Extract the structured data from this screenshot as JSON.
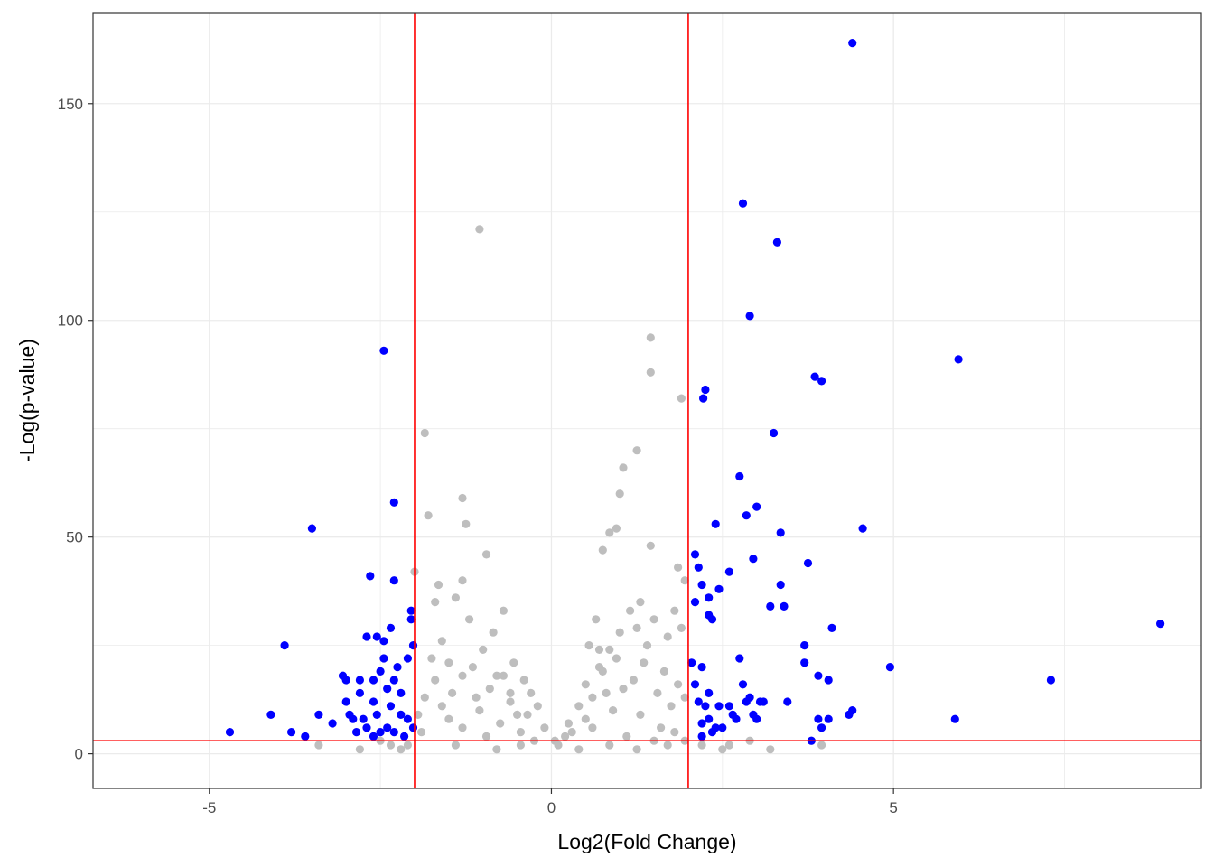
{
  "chart_data": {
    "type": "scatter",
    "title": "",
    "xlabel": "Log2(Fold Change)",
    "ylabel": "-Log(p-value)",
    "xlim": [
      -6.7,
      9.5
    ],
    "ylim": [
      -8,
      171
    ],
    "x_ticks": [
      -5,
      0,
      5
    ],
    "x_tick_labels": [
      "-5",
      "0",
      "5"
    ],
    "y_ticks": [
      0,
      50,
      100,
      150
    ],
    "y_tick_labels": [
      "0",
      "50",
      "100",
      "150"
    ],
    "grid": true,
    "legend": "none",
    "thresholds": {
      "log2fc_low": -2,
      "log2fc_high": 2,
      "neglog_p": 3
    },
    "colors": {
      "significant": "#0000ff",
      "not_significant": "#bebebe",
      "threshold_line": "#ff0000",
      "grid": "#ebebeb",
      "panel_border": "#333333"
    },
    "series": [
      {
        "color": "#0000ff",
        "points": [
          [
            -4.7,
            5
          ],
          [
            -4.1,
            9
          ],
          [
            -3.9,
            25
          ],
          [
            -3.8,
            5
          ],
          [
            -3.6,
            4
          ],
          [
            -3.5,
            52
          ],
          [
            -3.4,
            9
          ],
          [
            -3.2,
            7
          ],
          [
            -3.05,
            18
          ],
          [
            -3.0,
            17
          ],
          [
            -3.0,
            12
          ],
          [
            -2.95,
            9
          ],
          [
            -2.9,
            8
          ],
          [
            -2.85,
            5
          ],
          [
            -2.8,
            17
          ],
          [
            -2.8,
            14
          ],
          [
            -2.75,
            8
          ],
          [
            -2.7,
            27
          ],
          [
            -2.7,
            6
          ],
          [
            -2.65,
            41
          ],
          [
            -2.6,
            17
          ],
          [
            -2.6,
            12
          ],
          [
            -2.6,
            4
          ],
          [
            -2.55,
            27
          ],
          [
            -2.55,
            9
          ],
          [
            -2.5,
            19
          ],
          [
            -2.5,
            5
          ],
          [
            -2.45,
            93
          ],
          [
            -2.45,
            26
          ],
          [
            -2.45,
            22
          ],
          [
            -2.4,
            15
          ],
          [
            -2.4,
            6
          ],
          [
            -2.35,
            29
          ],
          [
            -2.35,
            11
          ],
          [
            -2.3,
            58
          ],
          [
            -2.3,
            40
          ],
          [
            -2.3,
            17
          ],
          [
            -2.3,
            5
          ],
          [
            -2.25,
            20
          ],
          [
            -2.2,
            14
          ],
          [
            -2.2,
            9
          ],
          [
            -2.15,
            4
          ],
          [
            -2.1,
            22
          ],
          [
            -2.1,
            8
          ],
          [
            -2.05,
            33
          ],
          [
            -2.05,
            31
          ],
          [
            -2.02,
            25
          ],
          [
            -2.02,
            6
          ],
          [
            2.1,
            46
          ],
          [
            2.15,
            43
          ],
          [
            2.2,
            39
          ],
          [
            2.25,
            84
          ],
          [
            2.22,
            82
          ],
          [
            2.3,
            36
          ],
          [
            2.3,
            32
          ],
          [
            2.35,
            31
          ],
          [
            2.4,
            53
          ],
          [
            2.45,
            38
          ],
          [
            2.2,
            20
          ],
          [
            2.3,
            14
          ],
          [
            2.25,
            11
          ],
          [
            2.2,
            4
          ],
          [
            2.1,
            35
          ],
          [
            2.05,
            21
          ],
          [
            2.1,
            16
          ],
          [
            2.15,
            12
          ],
          [
            2.2,
            7
          ],
          [
            2.3,
            8
          ],
          [
            2.35,
            5
          ],
          [
            2.4,
            6
          ],
          [
            2.45,
            11
          ],
          [
            2.5,
            6
          ],
          [
            2.6,
            42
          ],
          [
            2.6,
            11
          ],
          [
            2.65,
            9
          ],
          [
            2.7,
            8
          ],
          [
            2.75,
            64
          ],
          [
            2.8,
            127
          ],
          [
            2.85,
            55
          ],
          [
            2.9,
            101
          ],
          [
            2.95,
            45
          ],
          [
            3.0,
            57
          ],
          [
            2.75,
            22
          ],
          [
            2.8,
            16
          ],
          [
            2.85,
            12
          ],
          [
            2.9,
            13
          ],
          [
            2.95,
            9
          ],
          [
            3.0,
            8
          ],
          [
            3.05,
            12
          ],
          [
            3.1,
            12
          ],
          [
            3.2,
            34
          ],
          [
            3.25,
            74
          ],
          [
            3.3,
            118
          ],
          [
            3.35,
            39
          ],
          [
            3.35,
            51
          ],
          [
            3.4,
            34
          ],
          [
            3.45,
            12
          ],
          [
            3.7,
            21
          ],
          [
            3.7,
            25
          ],
          [
            3.75,
            44
          ],
          [
            3.8,
            3
          ],
          [
            3.85,
            87
          ],
          [
            3.95,
            86
          ],
          [
            3.9,
            18
          ],
          [
            3.9,
            8
          ],
          [
            3.95,
            6
          ],
          [
            4.05,
            8
          ],
          [
            4.05,
            17
          ],
          [
            4.1,
            29
          ],
          [
            4.35,
            9
          ],
          [
            4.4,
            10
          ],
          [
            4.4,
            164
          ],
          [
            4.55,
            52
          ],
          [
            4.95,
            20
          ],
          [
            5.9,
            8
          ],
          [
            5.95,
            91
          ],
          [
            7.3,
            17
          ],
          [
            8.9,
            30
          ]
        ]
      },
      {
        "color": "#bebebe",
        "points": [
          [
            -1.05,
            121
          ],
          [
            1.45,
            96
          ],
          [
            1.45,
            88
          ],
          [
            -1.85,
            74
          ],
          [
            -2.0,
            42
          ],
          [
            -1.8,
            55
          ],
          [
            -1.3,
            59
          ],
          [
            -1.25,
            53
          ],
          [
            -1.3,
            40
          ],
          [
            -0.95,
            46
          ],
          [
            -1.65,
            39
          ],
          [
            -1.7,
            35
          ],
          [
            -1.4,
            36
          ],
          [
            -1.2,
            31
          ],
          [
            -0.7,
            33
          ],
          [
            -0.85,
            28
          ],
          [
            -1.6,
            26
          ],
          [
            -1.75,
            22
          ],
          [
            -1.0,
            24
          ],
          [
            -0.55,
            21
          ],
          [
            -0.4,
            17
          ],
          [
            -0.2,
            11
          ],
          [
            -0.1,
            6
          ],
          [
            0.05,
            3
          ],
          [
            -0.35,
            9
          ],
          [
            -0.6,
            14
          ],
          [
            -0.8,
            18
          ],
          [
            -1.15,
            20
          ],
          [
            -1.45,
            14
          ],
          [
            -1.85,
            13
          ],
          [
            -1.95,
            9
          ],
          [
            -1.5,
            8
          ],
          [
            -1.05,
            10
          ],
          [
            -0.75,
            7
          ],
          [
            -0.45,
            5
          ],
          [
            -0.25,
            3
          ],
          [
            0.1,
            2
          ],
          [
            0.3,
            5
          ],
          [
            0.5,
            8
          ],
          [
            0.6,
            13
          ],
          [
            0.75,
            19
          ],
          [
            0.85,
            24
          ],
          [
            1.0,
            28
          ],
          [
            1.15,
            33
          ],
          [
            1.3,
            35
          ],
          [
            1.45,
            48
          ],
          [
            1.5,
            31
          ],
          [
            1.7,
            27
          ],
          [
            1.8,
            33
          ],
          [
            1.9,
            29
          ],
          [
            1.95,
            40
          ],
          [
            1.9,
            82
          ],
          [
            1.85,
            43
          ],
          [
            1.25,
            70
          ],
          [
            1.05,
            66
          ],
          [
            1.0,
            60
          ],
          [
            0.95,
            52
          ],
          [
            0.85,
            51
          ],
          [
            0.75,
            47
          ],
          [
            0.65,
            31
          ],
          [
            0.7,
            24
          ],
          [
            0.5,
            16
          ],
          [
            0.4,
            11
          ],
          [
            0.25,
            7
          ],
          [
            0.2,
            4
          ],
          [
            1.2,
            17
          ],
          [
            1.35,
            21
          ],
          [
            1.55,
            14
          ],
          [
            1.65,
            19
          ],
          [
            1.75,
            11
          ],
          [
            1.85,
            16
          ],
          [
            1.95,
            13
          ],
          [
            1.6,
            6
          ],
          [
            1.3,
            9
          ],
          [
            0.9,
            10
          ],
          [
            0.6,
            6
          ],
          [
            1.1,
            4
          ],
          [
            1.5,
            3
          ],
          [
            1.8,
            5
          ],
          [
            1.95,
            3
          ],
          [
            1.05,
            15
          ],
          [
            0.8,
            14
          ],
          [
            1.4,
            25
          ],
          [
            1.25,
            29
          ],
          [
            0.95,
            22
          ],
          [
            0.7,
            20
          ],
          [
            0.55,
            25
          ],
          [
            -0.6,
            12
          ],
          [
            -0.9,
            15
          ],
          [
            -1.3,
            18
          ],
          [
            -1.7,
            17
          ],
          [
            -1.9,
            5
          ],
          [
            -1.6,
            11
          ],
          [
            -1.3,
            6
          ],
          [
            -0.95,
            4
          ],
          [
            -0.5,
            9
          ],
          [
            -0.3,
            14
          ],
          [
            -1.1,
            13
          ],
          [
            -1.5,
            21
          ],
          [
            -0.7,
            18
          ],
          [
            -3.4,
            2
          ],
          [
            -2.8,
            1
          ],
          [
            -2.5,
            3
          ],
          [
            -2.35,
            2
          ],
          [
            -2.2,
            1
          ],
          [
            -2.1,
            2
          ],
          [
            2.2,
            2
          ],
          [
            2.5,
            1
          ],
          [
            2.6,
            2
          ],
          [
            2.9,
            3
          ],
          [
            3.2,
            1
          ],
          [
            3.8,
            3
          ],
          [
            3.95,
            2
          ],
          [
            -1.4,
            2
          ],
          [
            -0.8,
            1
          ],
          [
            -0.45,
            2
          ],
          [
            0.4,
            1
          ],
          [
            0.85,
            2
          ],
          [
            1.25,
            1
          ],
          [
            1.7,
            2
          ]
        ]
      }
    ]
  }
}
